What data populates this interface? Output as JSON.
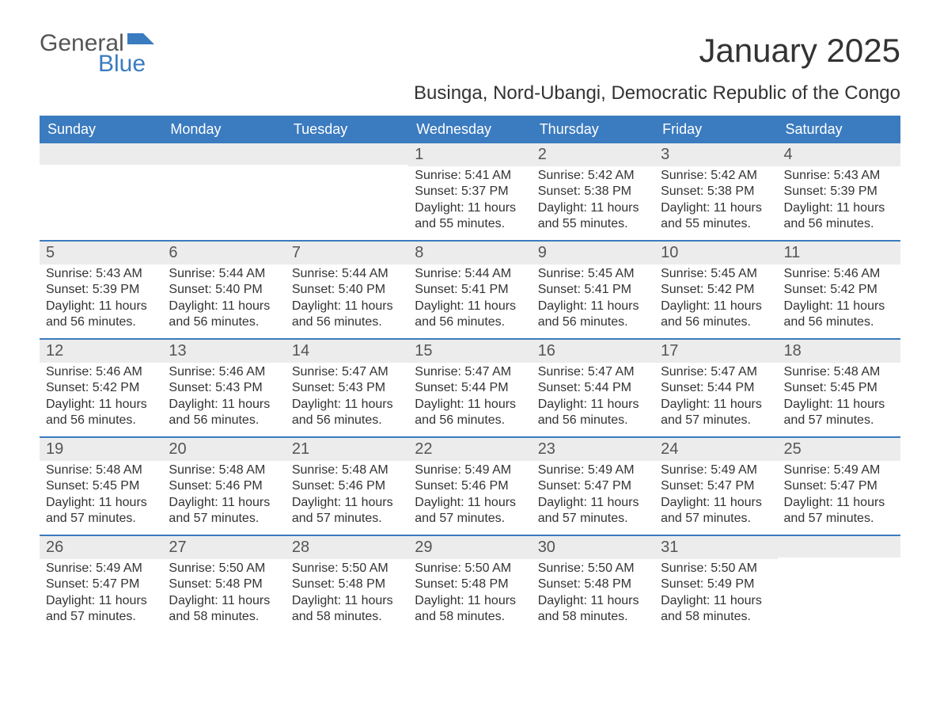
{
  "logo": {
    "word1": "General",
    "word2": "Blue"
  },
  "title": "January 2025",
  "subtitle": "Businga, Nord-Ubangi, Democratic Republic of the Congo",
  "colors": {
    "header_bg": "#3b7bbf",
    "header_text": "#ffffff",
    "daynum_bg": "#ececec",
    "week_border": "#3b7bbf",
    "text": "#333333",
    "logo_gray": "#555555",
    "logo_blue": "#3b7bbf",
    "background": "#ffffff"
  },
  "day_names": [
    "Sunday",
    "Monday",
    "Tuesday",
    "Wednesday",
    "Thursday",
    "Friday",
    "Saturday"
  ],
  "weeks": [
    [
      {
        "day": "",
        "sunrise": "",
        "sunset": "",
        "daylight": ""
      },
      {
        "day": "",
        "sunrise": "",
        "sunset": "",
        "daylight": ""
      },
      {
        "day": "",
        "sunrise": "",
        "sunset": "",
        "daylight": ""
      },
      {
        "day": "1",
        "sunrise": "Sunrise: 5:41 AM",
        "sunset": "Sunset: 5:37 PM",
        "daylight": "Daylight: 11 hours and 55 minutes."
      },
      {
        "day": "2",
        "sunrise": "Sunrise: 5:42 AM",
        "sunset": "Sunset: 5:38 PM",
        "daylight": "Daylight: 11 hours and 55 minutes."
      },
      {
        "day": "3",
        "sunrise": "Sunrise: 5:42 AM",
        "sunset": "Sunset: 5:38 PM",
        "daylight": "Daylight: 11 hours and 55 minutes."
      },
      {
        "day": "4",
        "sunrise": "Sunrise: 5:43 AM",
        "sunset": "Sunset: 5:39 PM",
        "daylight": "Daylight: 11 hours and 56 minutes."
      }
    ],
    [
      {
        "day": "5",
        "sunrise": "Sunrise: 5:43 AM",
        "sunset": "Sunset: 5:39 PM",
        "daylight": "Daylight: 11 hours and 56 minutes."
      },
      {
        "day": "6",
        "sunrise": "Sunrise: 5:44 AM",
        "sunset": "Sunset: 5:40 PM",
        "daylight": "Daylight: 11 hours and 56 minutes."
      },
      {
        "day": "7",
        "sunrise": "Sunrise: 5:44 AM",
        "sunset": "Sunset: 5:40 PM",
        "daylight": "Daylight: 11 hours and 56 minutes."
      },
      {
        "day": "8",
        "sunrise": "Sunrise: 5:44 AM",
        "sunset": "Sunset: 5:41 PM",
        "daylight": "Daylight: 11 hours and 56 minutes."
      },
      {
        "day": "9",
        "sunrise": "Sunrise: 5:45 AM",
        "sunset": "Sunset: 5:41 PM",
        "daylight": "Daylight: 11 hours and 56 minutes."
      },
      {
        "day": "10",
        "sunrise": "Sunrise: 5:45 AM",
        "sunset": "Sunset: 5:42 PM",
        "daylight": "Daylight: 11 hours and 56 minutes."
      },
      {
        "day": "11",
        "sunrise": "Sunrise: 5:46 AM",
        "sunset": "Sunset: 5:42 PM",
        "daylight": "Daylight: 11 hours and 56 minutes."
      }
    ],
    [
      {
        "day": "12",
        "sunrise": "Sunrise: 5:46 AM",
        "sunset": "Sunset: 5:42 PM",
        "daylight": "Daylight: 11 hours and 56 minutes."
      },
      {
        "day": "13",
        "sunrise": "Sunrise: 5:46 AM",
        "sunset": "Sunset: 5:43 PM",
        "daylight": "Daylight: 11 hours and 56 minutes."
      },
      {
        "day": "14",
        "sunrise": "Sunrise: 5:47 AM",
        "sunset": "Sunset: 5:43 PM",
        "daylight": "Daylight: 11 hours and 56 minutes."
      },
      {
        "day": "15",
        "sunrise": "Sunrise: 5:47 AM",
        "sunset": "Sunset: 5:44 PM",
        "daylight": "Daylight: 11 hours and 56 minutes."
      },
      {
        "day": "16",
        "sunrise": "Sunrise: 5:47 AM",
        "sunset": "Sunset: 5:44 PM",
        "daylight": "Daylight: 11 hours and 56 minutes."
      },
      {
        "day": "17",
        "sunrise": "Sunrise: 5:47 AM",
        "sunset": "Sunset: 5:44 PM",
        "daylight": "Daylight: 11 hours and 57 minutes."
      },
      {
        "day": "18",
        "sunrise": "Sunrise: 5:48 AM",
        "sunset": "Sunset: 5:45 PM",
        "daylight": "Daylight: 11 hours and 57 minutes."
      }
    ],
    [
      {
        "day": "19",
        "sunrise": "Sunrise: 5:48 AM",
        "sunset": "Sunset: 5:45 PM",
        "daylight": "Daylight: 11 hours and 57 minutes."
      },
      {
        "day": "20",
        "sunrise": "Sunrise: 5:48 AM",
        "sunset": "Sunset: 5:46 PM",
        "daylight": "Daylight: 11 hours and 57 minutes."
      },
      {
        "day": "21",
        "sunrise": "Sunrise: 5:48 AM",
        "sunset": "Sunset: 5:46 PM",
        "daylight": "Daylight: 11 hours and 57 minutes."
      },
      {
        "day": "22",
        "sunrise": "Sunrise: 5:49 AM",
        "sunset": "Sunset: 5:46 PM",
        "daylight": "Daylight: 11 hours and 57 minutes."
      },
      {
        "day": "23",
        "sunrise": "Sunrise: 5:49 AM",
        "sunset": "Sunset: 5:47 PM",
        "daylight": "Daylight: 11 hours and 57 minutes."
      },
      {
        "day": "24",
        "sunrise": "Sunrise: 5:49 AM",
        "sunset": "Sunset: 5:47 PM",
        "daylight": "Daylight: 11 hours and 57 minutes."
      },
      {
        "day": "25",
        "sunrise": "Sunrise: 5:49 AM",
        "sunset": "Sunset: 5:47 PM",
        "daylight": "Daylight: 11 hours and 57 minutes."
      }
    ],
    [
      {
        "day": "26",
        "sunrise": "Sunrise: 5:49 AM",
        "sunset": "Sunset: 5:47 PM",
        "daylight": "Daylight: 11 hours and 57 minutes."
      },
      {
        "day": "27",
        "sunrise": "Sunrise: 5:50 AM",
        "sunset": "Sunset: 5:48 PM",
        "daylight": "Daylight: 11 hours and 58 minutes."
      },
      {
        "day": "28",
        "sunrise": "Sunrise: 5:50 AM",
        "sunset": "Sunset: 5:48 PM",
        "daylight": "Daylight: 11 hours and 58 minutes."
      },
      {
        "day": "29",
        "sunrise": "Sunrise: 5:50 AM",
        "sunset": "Sunset: 5:48 PM",
        "daylight": "Daylight: 11 hours and 58 minutes."
      },
      {
        "day": "30",
        "sunrise": "Sunrise: 5:50 AM",
        "sunset": "Sunset: 5:48 PM",
        "daylight": "Daylight: 11 hours and 58 minutes."
      },
      {
        "day": "31",
        "sunrise": "Sunrise: 5:50 AM",
        "sunset": "Sunset: 5:49 PM",
        "daylight": "Daylight: 11 hours and 58 minutes."
      },
      {
        "day": "",
        "sunrise": "",
        "sunset": "",
        "daylight": ""
      }
    ]
  ]
}
